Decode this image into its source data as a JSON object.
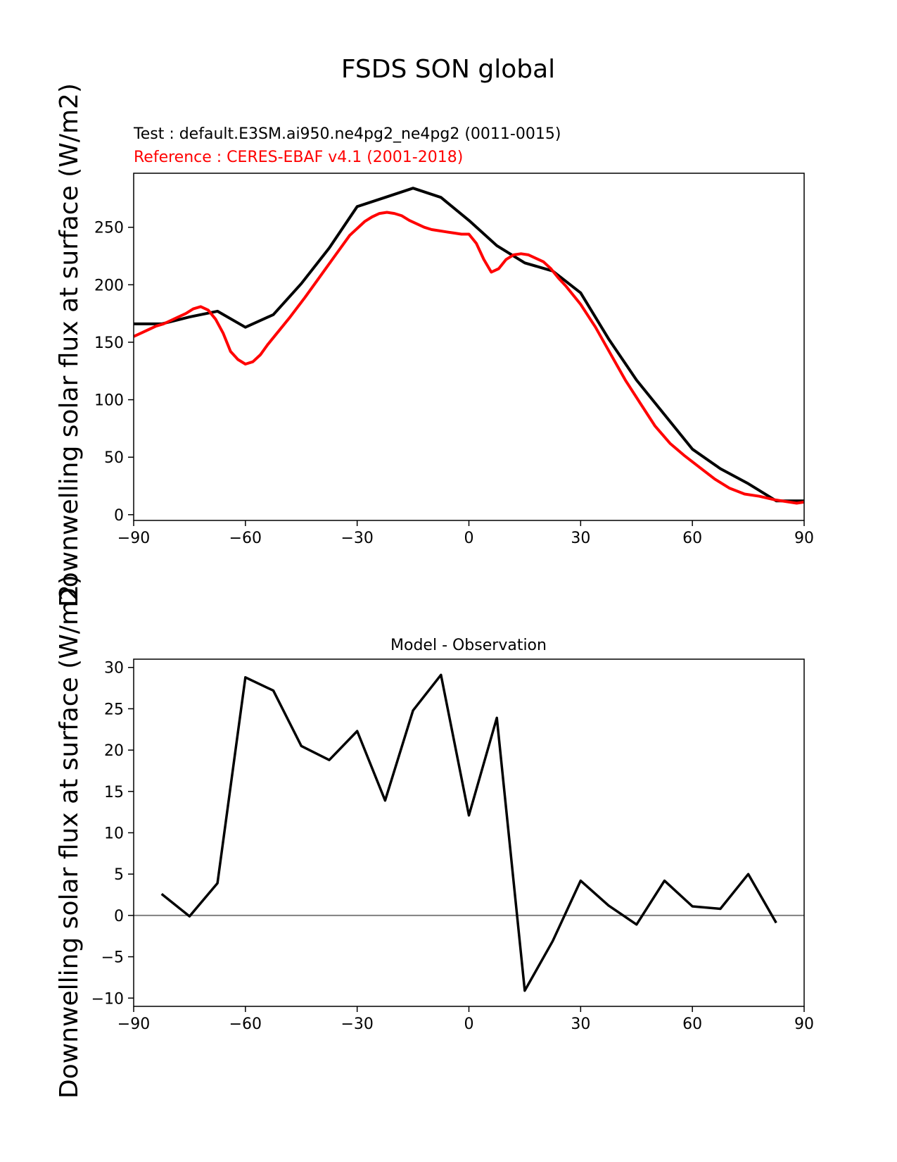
{
  "figure": {
    "title": "FSDS SON global"
  },
  "chart_data": [
    {
      "type": "line",
      "panel": "top",
      "subtitle_test": "Test : default.E3SM.ai950.ne4pg2_ne4pg2 (0011-0015)",
      "subtitle_ref": "Reference : CERES-EBAF v4.1 (2001-2018)",
      "xlabel": "",
      "ylabel": "Downwelling solar flux at surface (W/m2)",
      "xlim": [
        -90,
        90
      ],
      "ylim": [
        -5,
        297
      ],
      "xticks": [
        -90,
        -60,
        -30,
        0,
        30,
        60,
        90
      ],
      "xtick_labels": [
        "−90",
        "−60",
        "−30",
        "0",
        "30",
        "60",
        "90"
      ],
      "yticks": [
        0,
        50,
        100,
        150,
        200,
        250
      ],
      "ytick_labels": [
        "0",
        "50",
        "100",
        "150",
        "200",
        "250"
      ],
      "colors": {
        "test": "#000000",
        "reference": "#ff0000"
      },
      "series": [
        {
          "name": "Test",
          "color": "#000000",
          "x": [
            -90,
            -82.5,
            -75,
            -67.5,
            -60,
            -52.5,
            -45,
            -37.5,
            -30,
            -22.5,
            -15,
            -7.5,
            0,
            7.5,
            15,
            22.5,
            30,
            37.5,
            45,
            52.5,
            60,
            67.5,
            75,
            82.5,
            90
          ],
          "y": [
            166,
            166,
            172,
            177,
            163,
            174,
            201,
            232,
            268,
            276,
            284,
            276,
            256,
            234,
            219,
            212,
            193,
            153,
            117,
            87,
            57,
            40,
            27,
            12,
            12
          ]
        },
        {
          "name": "Reference",
          "color": "#ff0000",
          "x": [
            -90,
            -88,
            -86,
            -84,
            -82,
            -80,
            -78,
            -76,
            -74,
            -72,
            -70,
            -68,
            -66,
            -64,
            -62,
            -60,
            -58,
            -56,
            -54,
            -52,
            -48,
            -44,
            -40,
            -36,
            -32,
            -28,
            -26,
            -24,
            -22,
            -20,
            -18,
            -16,
            -14,
            -12,
            -10,
            -8,
            -6,
            -4,
            -2,
            0,
            2,
            4,
            6,
            8,
            10,
            12,
            14,
            16,
            18,
            20,
            22,
            24,
            26,
            28,
            30,
            34,
            38,
            42,
            46,
            50,
            54,
            58,
            62,
            66,
            70,
            74,
            78,
            82,
            86,
            88,
            90
          ],
          "y": [
            155,
            158,
            161,
            164,
            166,
            169,
            172,
            175,
            179,
            181,
            178,
            170,
            158,
            142,
            135,
            131,
            133,
            139,
            148,
            156,
            172,
            189,
            207,
            225,
            243,
            255,
            259,
            262,
            263,
            262,
            260,
            256,
            253,
            250,
            248,
            247,
            246,
            245,
            244,
            244,
            236,
            222,
            211,
            214,
            222,
            226,
            227,
            226,
            223,
            220,
            214,
            206,
            199,
            191,
            183,
            163,
            140,
            117,
            97,
            77,
            62,
            51,
            41,
            31,
            23,
            18,
            16,
            13,
            11,
            10,
            11
          ]
        }
      ]
    },
    {
      "type": "line",
      "panel": "bottom",
      "title": "Model - Observation",
      "xlabel": "",
      "ylabel": "Downwelling solar flux at surface (W/m2)",
      "xlim": [
        -90,
        90
      ],
      "ylim": [
        -11,
        31
      ],
      "xticks": [
        -90,
        -60,
        -30,
        0,
        30,
        60,
        90
      ],
      "xtick_labels": [
        "−90",
        "−60",
        "−30",
        "0",
        "30",
        "60",
        "90"
      ],
      "yticks": [
        -10,
        -5,
        0,
        5,
        10,
        15,
        20,
        25,
        30
      ],
      "ytick_labels": [
        "−10",
        "−5",
        "0",
        "5",
        "10",
        "15",
        "20",
        "25",
        "30"
      ],
      "zero_line_color": "#808080",
      "series": [
        {
          "name": "Model - Observation",
          "color": "#000000",
          "x": [
            -82.5,
            -75,
            -67.5,
            -60,
            -52.5,
            -45,
            -37.5,
            -30,
            -22.5,
            -15,
            -7.5,
            0,
            7.5,
            15,
            22.5,
            30,
            37.5,
            45,
            52.5,
            60,
            67.5,
            75,
            82.5
          ],
          "y": [
            2.6,
            -0.1,
            3.9,
            28.8,
            27.2,
            20.5,
            18.8,
            22.3,
            13.9,
            24.8,
            29.1,
            12.1,
            23.9,
            -9.1,
            -3.1,
            4.2,
            1.2,
            -1.1,
            4.2,
            1.1,
            0.8,
            5.0,
            -0.9
          ]
        }
      ]
    }
  ]
}
